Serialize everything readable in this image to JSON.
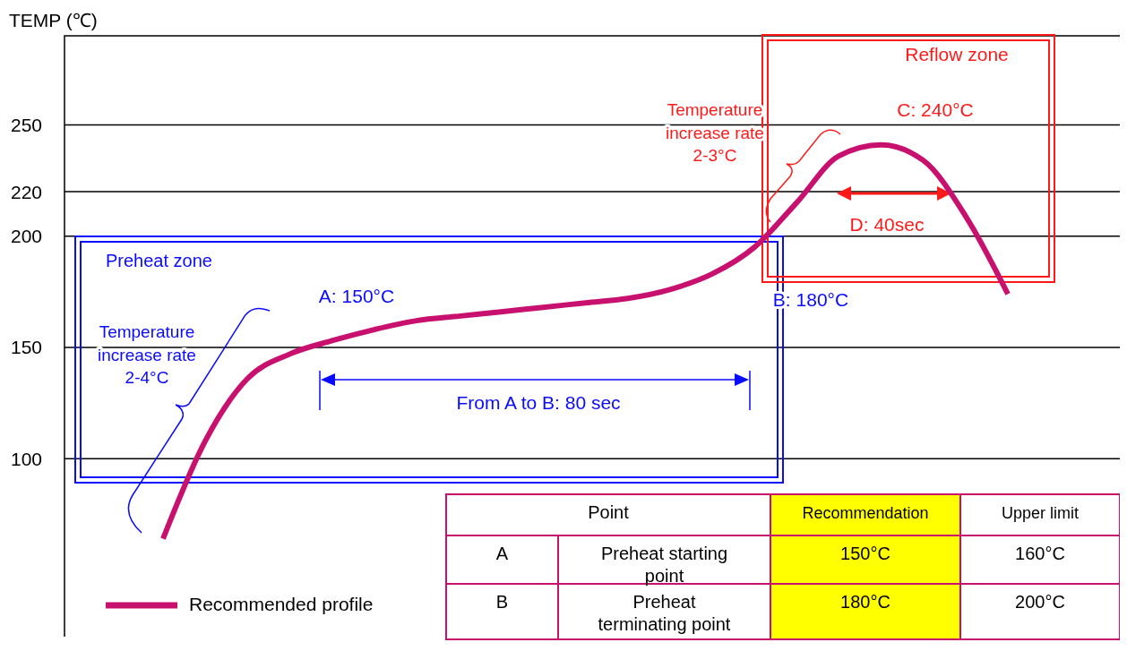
{
  "chart_data": {
    "type": "line",
    "ylabel": "TEMP (℃)",
    "categories": [
      null,
      null,
      null,
      null,
      null,
      null,
      null,
      null,
      null,
      null,
      null,
      null,
      null,
      null,
      null,
      null,
      null,
      null,
      null,
      null,
      null
    ],
    "series": [
      {
        "name": "Recommended profile",
        "color": "#c8106e",
        "values": [
          64,
          108,
          136,
          147,
          153,
          158,
          162,
          164,
          166,
          168,
          170,
          172,
          176,
          183,
          195,
          215,
          236,
          241,
          234,
          209,
          174
        ]
      }
    ],
    "ylim": [
      20,
      290
    ],
    "yticks": [
      100,
      150,
      200,
      220,
      250
    ],
    "grid": "y",
    "legend": "bottom left",
    "tick_labels": "y",
    "annotations": [
      "Preheat zone",
      "A: 150°C",
      "B: 180°C",
      "Temperature\nincrease rate\n2-4°C",
      "From A to B: 80 sec",
      "Reflow zone",
      "C: 240°C",
      "Temperature\nincrease rate\n2-3°C",
      "D: 40sec",
      "Point",
      "Recommendation",
      "Upper limit",
      "A",
      "Preheat starting\npoint",
      "150°C",
      "160°C",
      "B",
      "Preheat\nterminating point",
      "180°C",
      "200°C"
    ]
  }
}
